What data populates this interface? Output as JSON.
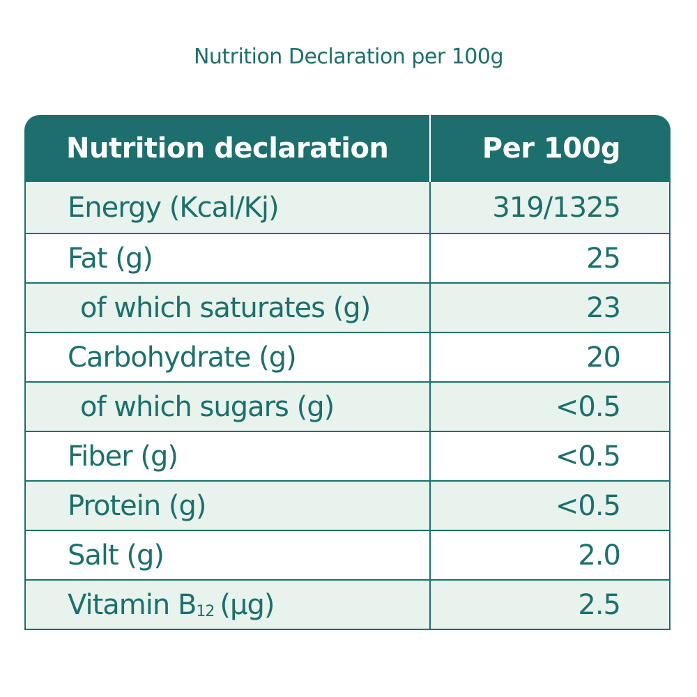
{
  "caption": "Nutrition Declaration per 100g",
  "table": {
    "header": {
      "label": "Nutrition declaration",
      "value": "Per 100g"
    },
    "rows": [
      {
        "label": "Energy (Kcal/Kj)",
        "value": "319/1325",
        "indent": false
      },
      {
        "label": "Fat (g)",
        "value": "25",
        "indent": false
      },
      {
        "label": "of which saturates (g)",
        "value": "23",
        "indent": true
      },
      {
        "label": "Carbohydrate (g)",
        "value": "20",
        "indent": false
      },
      {
        "label": "of which sugars (g)",
        "value": "<0.5",
        "indent": true
      },
      {
        "label": "Fiber (g)",
        "value": "<0.5",
        "indent": false
      },
      {
        "label": "Protein (g)",
        "value": "<0.5",
        "indent": false
      },
      {
        "label": "Salt (g)",
        "value": "2.0",
        "indent": false
      },
      {
        "label_main": "Vitamin B",
        "label_sub": "12",
        "label_unit": "(μg)",
        "value": "2.5",
        "indent": false
      }
    ]
  },
  "colors": {
    "primary": "#1c6f6c",
    "row_alt": "#e7f3ec",
    "row_plain": "#ffffff"
  }
}
